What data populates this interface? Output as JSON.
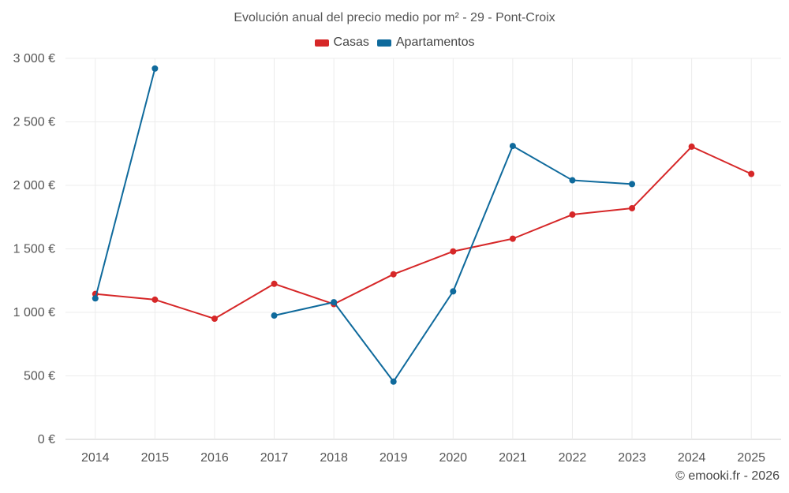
{
  "chart_data": {
    "type": "line",
    "title": "Evolución anual del precio medio por m² - 29 - Pont-Croix",
    "xlabel": "",
    "ylabel": "",
    "categories": [
      "2014",
      "2015",
      "2016",
      "2017",
      "2018",
      "2019",
      "2020",
      "2021",
      "2022",
      "2023",
      "2024",
      "2025"
    ],
    "ylim": [
      0,
      3000
    ],
    "yticks": [
      0,
      500,
      1000,
      1500,
      2000,
      2500,
      3000
    ],
    "ytick_labels": [
      "0 €",
      "500 €",
      "1 000 €",
      "1 500 €",
      "2 000 €",
      "2 500 €",
      "3 000 €"
    ],
    "grid": true,
    "legend_position": "top-center",
    "series": [
      {
        "name": "Casas",
        "color": "#d62728",
        "values": [
          1145,
          1100,
          950,
          1225,
          1065,
          1300,
          1480,
          1580,
          1770,
          1820,
          2305,
          2090
        ]
      },
      {
        "name": "Apartamentos",
        "color": "#0f6a9c",
        "values": [
          1110,
          2920,
          null,
          975,
          1080,
          455,
          1165,
          2310,
          2040,
          2010,
          null,
          null
        ]
      }
    ]
  },
  "credit": "© emooki.fr - 2026"
}
